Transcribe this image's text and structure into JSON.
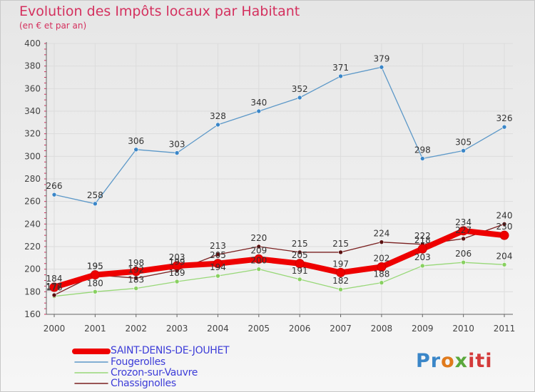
{
  "chart_data": {
    "type": "line",
    "title": "Evolution des Impôts locaux par Habitant",
    "subtitle": "(en € et par an)",
    "xlabel": "",
    "ylabel": "",
    "ylim": [
      160,
      400
    ],
    "yticks": [
      160,
      180,
      200,
      220,
      240,
      260,
      280,
      300,
      320,
      340,
      360,
      380,
      400
    ],
    "categories": [
      "2000",
      "2001",
      "2002",
      "2003",
      "2004",
      "2005",
      "2006",
      "2007",
      "2008",
      "2009",
      "2010",
      "2011"
    ],
    "series": [
      {
        "name": "SAINT-DENIS-DE-JOUHET",
        "color": "#ee0000",
        "values": [
          184,
          195,
          198,
          203,
          205,
          209,
          205,
          197,
          202,
          218,
          234,
          230
        ],
        "labels": [
          "184",
          "195",
          "198",
          "203",
          "205",
          "209",
          "205",
          "197",
          "202",
          "218",
          "234",
          "230"
        ]
      },
      {
        "name": "Fougerolles",
        "color": "#5c98c8",
        "values": [
          266,
          258,
          306,
          303,
          328,
          340,
          352,
          371,
          379,
          298,
          305,
          326
        ],
        "labels": [
          "266",
          "258",
          "306",
          "303",
          "328",
          "340",
          "352",
          "371",
          "379",
          "298",
          "305",
          "326"
        ]
      },
      {
        "name": "Crozon-sur-Vauvre",
        "color": "#98d878",
        "values": [
          176,
          180,
          183,
          189,
          194,
          200,
          191,
          182,
          188,
          203,
          206,
          204
        ],
        "labels": [
          "176",
          "180",
          "183",
          "189",
          "194",
          "200",
          "191",
          "182",
          "188",
          "203",
          "206",
          "204"
        ]
      },
      {
        "name": "Chassignolles",
        "color": "#7a2020",
        "values": [
          177,
          195,
          192,
          199,
          213,
          220,
          215,
          215,
          224,
          222,
          227,
          240
        ],
        "labels": [
          "177",
          "195",
          "192",
          "199",
          "213",
          "220",
          "215",
          "215",
          "224",
          "222",
          "227",
          "240"
        ]
      }
    ],
    "legend_position": "bottom-left"
  },
  "logo": {
    "parts": [
      "Pr",
      "o",
      "x",
      "iti"
    ]
  }
}
